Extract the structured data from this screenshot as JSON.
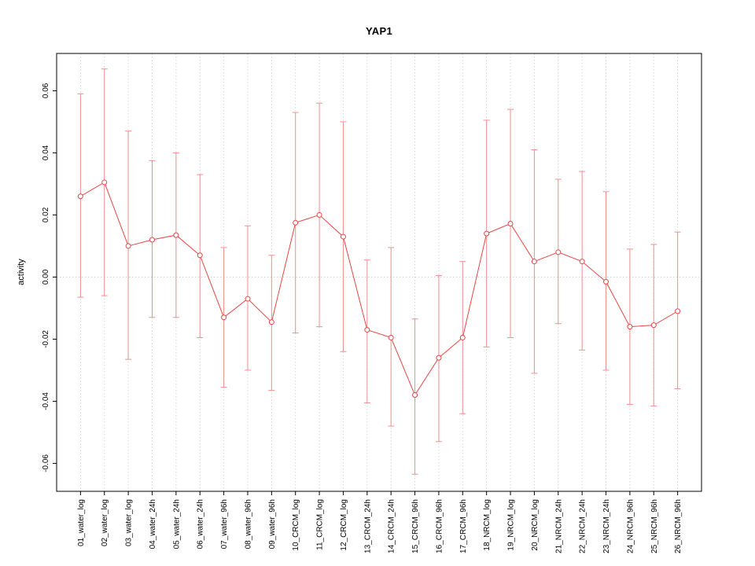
{
  "chart_data": {
    "type": "line",
    "title": "YAP1",
    "ylabel": "activity",
    "xlabel": "",
    "ylim": [
      -0.069,
      0.072
    ],
    "ytick_values": [
      0.06,
      0.04,
      0.02,
      0.0,
      -0.02,
      -0.04,
      -0.06
    ],
    "ytick_labels": [
      "0.06",
      "0.04",
      "0.02",
      "0.00",
      "-0.02",
      "-0.04",
      "-0.06"
    ],
    "grid": "vertical-dotted",
    "zero_line": true,
    "legend": "none",
    "categories": [
      "01_water_log",
      "02_water_log",
      "03_water_log",
      "04_water_24h",
      "05_water_24h",
      "06_water_24h",
      "07_water_96h",
      "08_water_96h",
      "09_water_96h",
      "10_CRCM_log",
      "11_CRCM_log",
      "12_CRCM_log",
      "13_CRCM_24h",
      "14_CRCM_24h",
      "15_CRCM_96h",
      "16_CRCM_96h",
      "17_CRCM_96h",
      "18_NRCM_log",
      "19_NRCM_log",
      "20_NRCM_log",
      "21_NRCM_24h",
      "22_NRCM_24h",
      "23_NRCM_24h",
      "24_NRCM_96h",
      "25_NRCM_96h",
      "26_NRCM_96h"
    ],
    "series": [
      {
        "name": "activity mean",
        "values": [
          0.026,
          0.0305,
          0.01,
          0.012,
          0.0135,
          0.007,
          -0.013,
          -0.007,
          -0.0145,
          0.0175,
          0.02,
          0.013,
          -0.017,
          -0.0195,
          -0.038,
          -0.026,
          -0.0195,
          0.014,
          0.0172,
          0.005,
          0.008,
          0.005,
          -0.0015,
          -0.016,
          -0.0155,
          -0.011
        ]
      }
    ],
    "error_lower": [
      -0.0065,
      -0.006,
      -0.0265,
      -0.013,
      -0.013,
      -0.0195,
      -0.0355,
      -0.03,
      -0.0365,
      -0.018,
      -0.016,
      -0.024,
      -0.0405,
      -0.048,
      -0.0635,
      -0.053,
      -0.044,
      -0.0225,
      -0.0195,
      -0.031,
      -0.015,
      -0.0235,
      -0.03,
      -0.041,
      -0.0415,
      -0.036
    ],
    "error_upper": [
      0.059,
      0.067,
      0.047,
      0.0375,
      0.04,
      0.033,
      0.0095,
      0.0165,
      0.007,
      0.053,
      0.056,
      0.05,
      0.0055,
      0.0095,
      -0.0135,
      0.0005,
      0.005,
      0.0505,
      0.054,
      0.041,
      0.0315,
      0.034,
      0.0275,
      0.009,
      0.0105,
      0.0145
    ],
    "colors": {
      "line": "#e64545",
      "point_stroke": "#e64545",
      "point_fill": "#ffffff",
      "error_bar": "#ee8f8f",
      "grid": "#cccccc",
      "zero_line": "#cccccc",
      "axis": "#000000",
      "text": "#000000"
    }
  }
}
